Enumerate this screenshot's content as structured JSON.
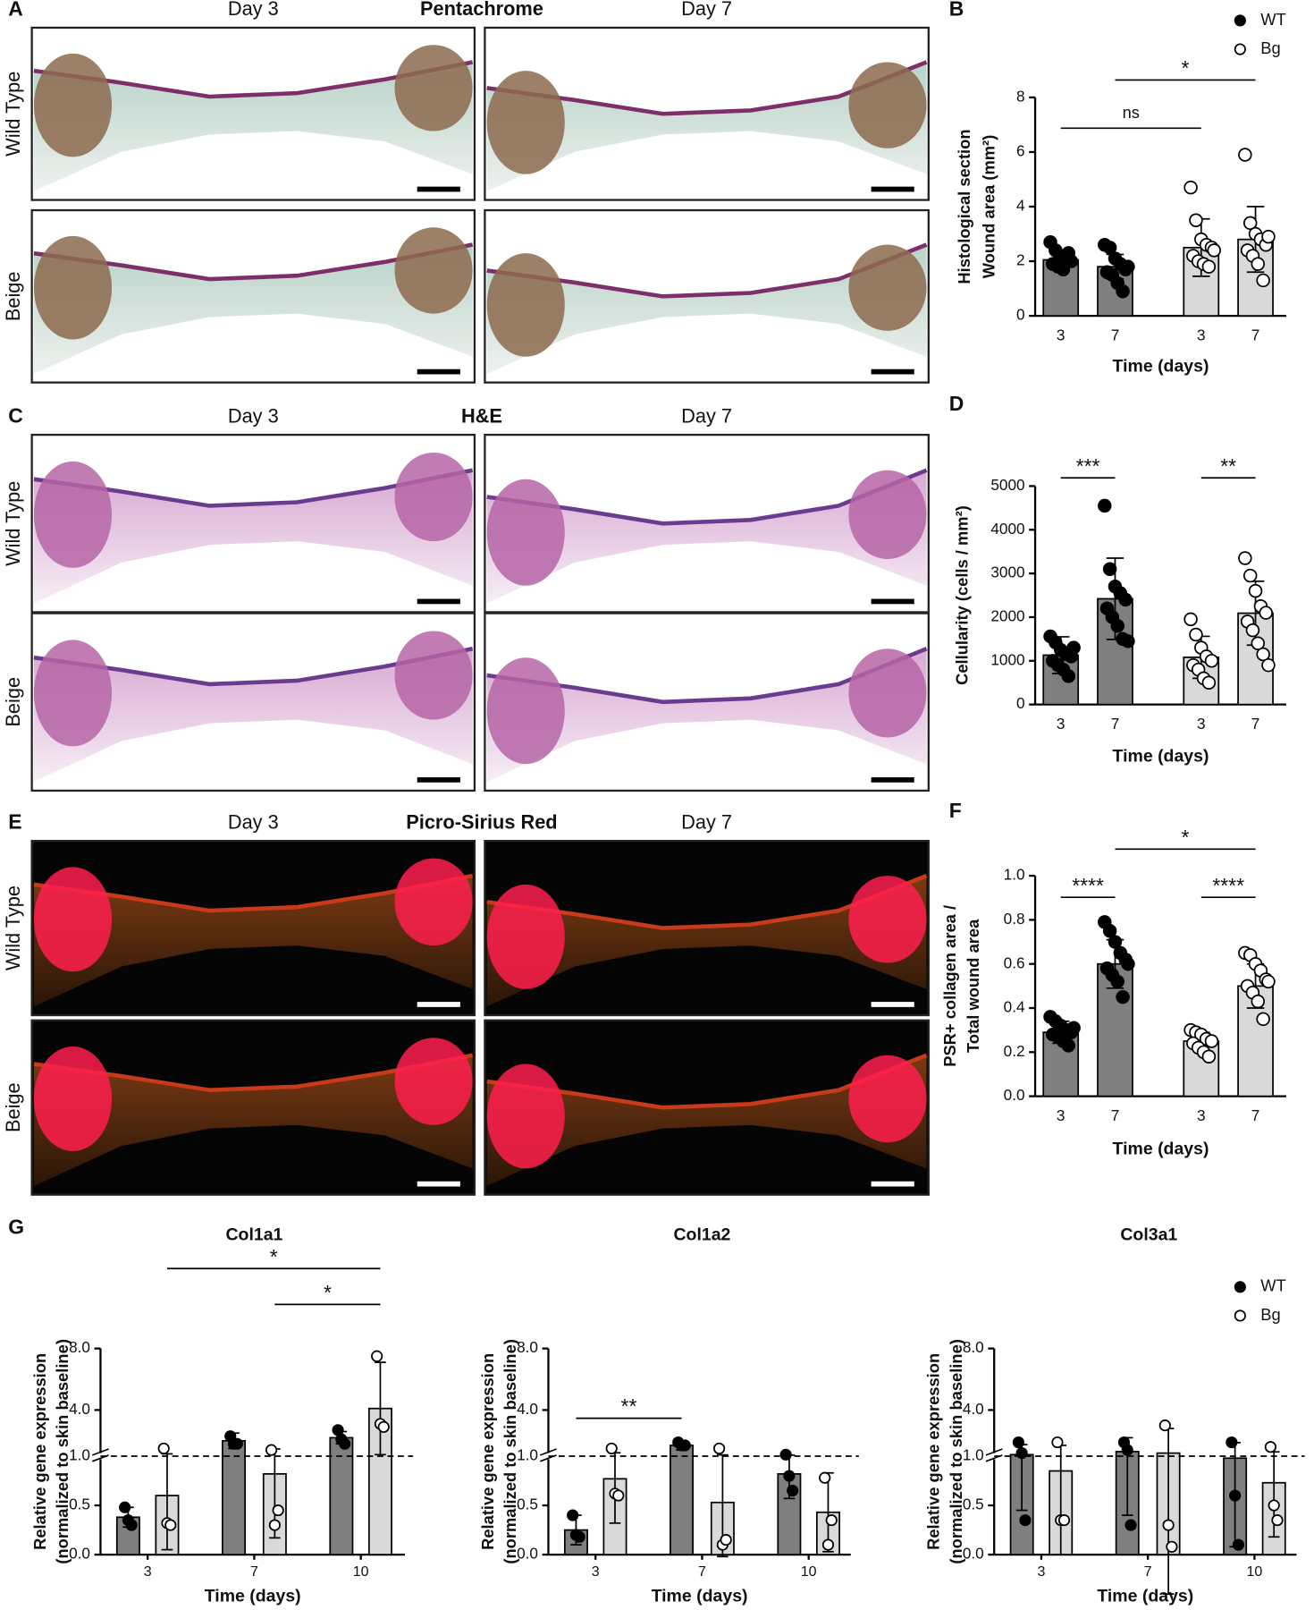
{
  "panels": [
    {
      "letter": "A",
      "title": "Pentachrome",
      "columns": [
        "Day 3",
        "Day 7"
      ],
      "rows": [
        "Wild Type",
        "Beige"
      ]
    },
    {
      "letter": "C",
      "title": "H&E",
      "columns": [
        "Day 3",
        "Day 7"
      ],
      "rows": [
        "Wild Type",
        "Beige"
      ]
    },
    {
      "letter": "E",
      "title": "Picro-Sirius Red",
      "columns": [
        "Day 3",
        "Day 7"
      ],
      "rows": [
        "Wild Type",
        "Beige"
      ]
    }
  ],
  "chart_data": [
    {
      "type": "bar",
      "panel": "B",
      "ylabel": [
        "Histological section",
        "Wound area (mm²)"
      ],
      "xlabel": "Time (days)",
      "categories": [
        "3",
        "7"
      ],
      "ylim": [
        0,
        8
      ],
      "yticks": [
        0,
        2,
        4,
        6,
        8
      ],
      "legend": "upper right",
      "series": [
        {
          "name": "WT",
          "color": "#7f7f7f",
          "point_color": "#000000",
          "values": [
            2.05,
            1.8
          ],
          "errors": [
            0.35,
            0.45
          ],
          "points": [
            [
              2.7,
              2.4,
              2.2,
              2.1,
              2.0,
              1.9,
              1.8,
              1.7,
              2.3
            ],
            [
              2.6,
              2.5,
              2.1,
              1.9,
              1.7,
              1.6,
              1.5,
              1.2,
              0.9,
              1.8
            ]
          ]
        },
        {
          "name": "Bg",
          "color": "#d9d9d9",
          "point_color": "#ffffff",
          "values": [
            2.5,
            2.8
          ],
          "errors": [
            1.05,
            1.2
          ],
          "points": [
            [
              4.7,
              3.5,
              2.8,
              2.6,
              2.5,
              2.2,
              2.0,
              1.9,
              1.8,
              2.4
            ],
            [
              5.9,
              3.4,
              3.0,
              2.8,
              2.6,
              2.4,
              2.2,
              1.9,
              1.3,
              2.9
            ]
          ]
        }
      ],
      "annotations": [
        {
          "text": "ns",
          "from": 0,
          "to": 2
        },
        {
          "text": "*",
          "from": 1,
          "to": 3
        }
      ]
    },
    {
      "type": "bar",
      "panel": "D",
      "ylabel": [
        "Cellularity (cells / mm²)"
      ],
      "xlabel": "Time (days)",
      "categories": [
        "3",
        "7"
      ],
      "ylim": [
        0,
        5000
      ],
      "yticks": [
        0,
        1000,
        2000,
        3000,
        4000,
        5000
      ],
      "series": [
        {
          "name": "WT",
          "color": "#7f7f7f",
          "point_color": "#000000",
          "values": [
            1130,
            2420
          ],
          "errors": [
            420,
            930
          ],
          "points": [
            [
              1560,
              1420,
              1250,
              1150,
              1100,
              1000,
              900,
              800,
              650,
              1300
            ],
            [
              4550,
              3100,
              2700,
              2550,
              2400,
              2200,
              2000,
              1800,
              1500,
              1450
            ]
          ]
        },
        {
          "name": "Bg",
          "color": "#d9d9d9",
          "point_color": "#ffffff",
          "values": [
            1080,
            2090
          ],
          "errors": [
            480,
            730
          ],
          "points": [
            [
              1950,
              1600,
              1300,
              1100,
              1000,
              900,
              800,
              600,
              500
            ],
            [
              3350,
              2950,
              2600,
              2250,
              2100,
              1900,
              1700,
              1400,
              1150,
              900
            ]
          ]
        }
      ],
      "annotations": [
        {
          "text": "***",
          "from": 0,
          "to": 1
        },
        {
          "text": "**",
          "from": 2,
          "to": 3
        }
      ]
    },
    {
      "type": "bar",
      "panel": "F",
      "ylabel": [
        "PSR+ collagen area /",
        "Total wound area"
      ],
      "xlabel": "Time (days)",
      "categories": [
        "3",
        "7"
      ],
      "ylim": [
        0,
        1
      ],
      "yticks": [
        {
          "value": 0,
          "label": "0.0"
        },
        0.2,
        0.4,
        0.6,
        0.8,
        {
          "value": 1,
          "label": "1.0"
        }
      ],
      "series": [
        {
          "name": "WT",
          "color": "#7f7f7f",
          "point_color": "#000000",
          "values": [
            0.29,
            0.6
          ],
          "errors": [
            0.05,
            0.11
          ],
          "points": [
            [
              0.36,
              0.34,
              0.32,
              0.3,
              0.29,
              0.28,
              0.27,
              0.25,
              0.23,
              0.31
            ],
            [
              0.79,
              0.75,
              0.7,
              0.65,
              0.62,
              0.58,
              0.55,
              0.52,
              0.45,
              0.6
            ]
          ]
        },
        {
          "name": "Bg",
          "color": "#d9d9d9",
          "point_color": "#ffffff",
          "values": [
            0.25,
            0.5
          ],
          "errors": [
            0.04,
            0.1
          ],
          "points": [
            [
              0.3,
              0.29,
              0.28,
              0.26,
              0.25,
              0.24,
              0.22,
              0.2,
              0.18
            ],
            [
              0.65,
              0.64,
              0.6,
              0.57,
              0.53,
              0.5,
              0.47,
              0.43,
              0.35,
              0.52
            ]
          ]
        }
      ],
      "annotations": [
        {
          "text": "****",
          "from": 0,
          "to": 1
        },
        {
          "text": "****",
          "from": 2,
          "to": 3
        },
        {
          "text": "*",
          "from": 1,
          "to": 3
        }
      ]
    },
    {
      "type": "bar",
      "panel": "G",
      "title": "Col1a1",
      "ylabel": [
        "Relative gene expression",
        "(normalized to skin baseline)"
      ],
      "xlabel": "Time (days)",
      "categories": [
        "3",
        "7",
        "10"
      ],
      "ylim": [
        0,
        8
      ],
      "ybreak": 1,
      "reference_line": 1,
      "yticks": [
        {
          "value": 0,
          "label": "0.0"
        },
        0.5,
        {
          "value": 1,
          "label": "1.0"
        },
        {
          "value": 4,
          "label": "4.0"
        },
        {
          "value": 8,
          "label": "8.0"
        }
      ],
      "series": [
        {
          "name": "WT",
          "color": "#7f7f7f",
          "point_color": "#000000",
          "values": [
            0.38,
            2.0,
            2.2
          ],
          "errors": [
            0.1,
            0.5,
            0.4
          ],
          "points": [
            [
              0.48,
              0.35,
              0.3
            ],
            [
              2.3,
              1.8,
              1.8
            ],
            [
              2.7,
              2.1,
              1.8
            ]
          ]
        },
        {
          "name": "Bg",
          "color": "#d9d9d9",
          "point_color": "#ffffff",
          "values": [
            0.6,
            0.82,
            4.1
          ],
          "errors": [
            0.55,
            0.65,
            3.0
          ],
          "points": [
            [
              1.5,
              0.32,
              0.3
            ],
            [
              1.4,
              0.3,
              0.45
            ],
            [
              7.5,
              3.1,
              2.9
            ]
          ]
        }
      ],
      "annotations": [
        {
          "text": "*",
          "from": 3,
          "to": 5
        },
        {
          "text": "*",
          "from": 1,
          "to": 5
        }
      ]
    },
    {
      "type": "bar",
      "title": "Col1a2",
      "ylabel": [
        "Relative gene expression",
        "(normalized to skin baseline)"
      ],
      "xlabel": "Time (days)",
      "categories": [
        "3",
        "7",
        "10"
      ],
      "ylim": [
        0,
        8
      ],
      "ybreak": 1,
      "reference_line": 1,
      "yticks": [
        {
          "value": 0,
          "label": "0.0"
        },
        0.5,
        {
          "value": 1,
          "label": "1.0"
        },
        {
          "value": 4,
          "label": "4.0"
        },
        {
          "value": 8,
          "label": "8.0"
        }
      ],
      "series": [
        {
          "name": "WT",
          "color": "#7f7f7f",
          "point_color": "#000000",
          "values": [
            0.25,
            1.7,
            0.82
          ],
          "errors": [
            0.15,
            0.3,
            0.25
          ],
          "points": [
            [
              0.4,
              0.2,
              0.18
            ],
            [
              1.9,
              1.7,
              1.7
            ],
            [
              1.1,
              0.8,
              0.65
            ]
          ]
        },
        {
          "name": "Bg",
          "color": "#d9d9d9",
          "point_color": "#ffffff",
          "values": [
            0.77,
            0.53,
            0.43
          ],
          "errors": [
            0.45,
            0.55,
            0.4
          ],
          "points": [
            [
              1.5,
              0.62,
              0.6
            ],
            [
              1.5,
              0.1,
              0.15
            ],
            [
              0.78,
              0.1,
              0.35
            ]
          ]
        }
      ],
      "annotations": [
        {
          "text": "**",
          "from": 0,
          "to": 2
        }
      ]
    },
    {
      "type": "bar",
      "title": "Col3a1",
      "ylabel": [
        "Relative gene expression",
        "(normalized to skin baseline)"
      ],
      "xlabel": "Time (days)",
      "categories": [
        "3",
        "7",
        "10"
      ],
      "ylim": [
        0,
        8
      ],
      "ybreak": 1,
      "reference_line": 1,
      "legend": "upper right",
      "yticks": [
        {
          "value": 0,
          "label": "0.0"
        },
        0.5,
        {
          "value": 1,
          "label": "1.0"
        },
        {
          "value": 4,
          "label": "4.0"
        },
        {
          "value": 8,
          "label": "8.0"
        }
      ],
      "series": [
        {
          "name": "WT",
          "color": "#7f7f7f",
          "point_color": "#000000",
          "values": [
            1.1,
            1.3,
            0.98
          ],
          "errors": [
            0.65,
            0.9,
            0.9
          ],
          "points": [
            [
              1.9,
              1.2,
              0.35
            ],
            [
              1.9,
              1.4,
              0.3
            ],
            [
              1.9,
              0.6,
              0.1
            ]
          ]
        },
        {
          "name": "Bg",
          "color": "#d9d9d9",
          "point_color": "#ffffff",
          "values": [
            0.85,
            1.2,
            0.73
          ],
          "errors": [
            0.85,
            1.6,
            0.55
          ],
          "points": [
            [
              1.9,
              0.35,
              0.35
            ],
            [
              3.0,
              0.3,
              0.08
            ],
            [
              1.6,
              0.5,
              0.35
            ]
          ]
        }
      ],
      "annotations": []
    }
  ]
}
